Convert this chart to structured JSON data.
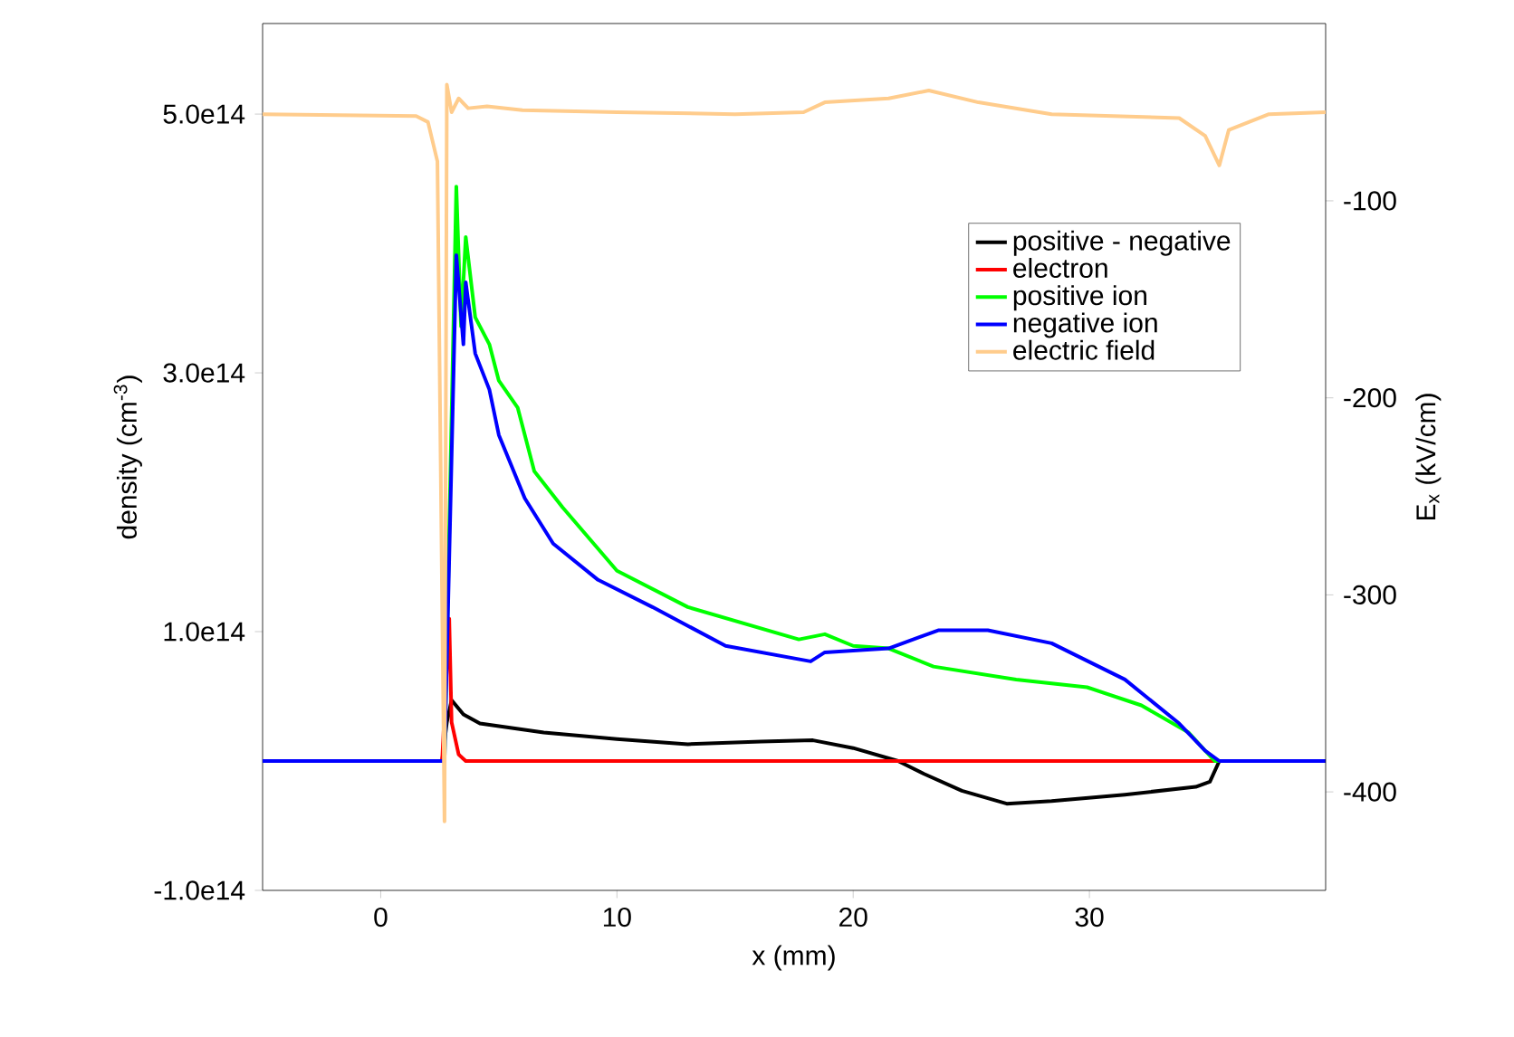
{
  "chart_data": {
    "type": "line",
    "xlabel": "x (mm)",
    "ylabel": "density (cm$^{-3}$)",
    "y2label": "E$_{x}$ (kV/cm)",
    "xlim": [
      -5,
      40
    ],
    "xticks": [
      0,
      10,
      20,
      30
    ],
    "ylim": [
      -100000000000000.0,
      570000000000000.0
    ],
    "yticks": [
      {
        "value": -100000000000000.0,
        "label": "-1.0e14"
      },
      {
        "value": 100000000000000.0,
        "label": "1.0e14"
      },
      {
        "value": 300000000000000.0,
        "label": "3.0e14"
      },
      {
        "value": 500000000000000.0,
        "label": "5.0e14"
      }
    ],
    "y2lim": [
      -450,
      -10
    ],
    "y2ticks": [
      -400,
      -300,
      -200,
      -100
    ],
    "legend": "top right",
    "grid": false,
    "marker": "none",
    "line_style": "solid",
    "series": [
      {
        "name": "positive - negative",
        "color": "#000000",
        "x": [
          -5,
          2.6,
          2.8,
          3.0,
          3.5,
          4.2,
          6.9,
          10,
          13,
          16.1,
          18.3,
          20,
          21.9,
          23,
          24.6,
          26.5,
          28.4,
          31.5,
          34.5,
          35.1,
          35.5,
          40
        ],
        "values": [
          0,
          0,
          30000000000000.0,
          47000000000000.0,
          36000000000000.0,
          29000000000000.0,
          22000000000000.0,
          17000000000000.0,
          13000000000000.0,
          15000000000000.0,
          16000000000000.0,
          10000000000000.0,
          0,
          -10000000000000.0,
          -23000000000000.0,
          -33000000000000.0,
          -31000000000000.0,
          -26000000000000.0,
          -20000000000000.0,
          -16000000000000.0,
          0,
          0
        ]
      },
      {
        "name": "electron",
        "color": "#ff0000",
        "x": [
          -5,
          2.6,
          2.9,
          3.0,
          3.3,
          3.6,
          40
        ],
        "values": [
          0,
          0,
          110000000000000.0,
          30000000000000.0,
          5000000000000.0,
          0,
          0
        ]
      },
      {
        "name": "positive ion",
        "color": "#00ff00",
        "x": [
          -5,
          2.7,
          3.2,
          3.4,
          3.6,
          4.0,
          4.6,
          5.0,
          5.8,
          6.5,
          7.7,
          10,
          13,
          17.7,
          18.8,
          20,
          21.5,
          23.4,
          26.9,
          29.9,
          32.2,
          34.2,
          35.3,
          40
        ],
        "values": [
          0,
          0,
          444000000000000.0,
          336000000000000.0,
          405000000000000.0,
          343000000000000.0,
          322000000000000.0,
          294000000000000.0,
          273000000000000.0,
          224000000000000.0,
          196000000000000.0,
          147000000000000.0,
          119000000000000.0,
          94000000000000.0,
          98000000000000.0,
          89000000000000.0,
          87000000000000.0,
          73000000000000.0,
          63000000000000.0,
          57000000000000.0,
          43000000000000.0,
          22000000000000.0,
          0,
          0
        ]
      },
      {
        "name": "negative ion",
        "color": "#0000ff",
        "x": [
          -5,
          2.7,
          3.2,
          3.5,
          3.6,
          4.0,
          4.6,
          5.0,
          6.1,
          7.3,
          9.2,
          11.5,
          14.6,
          18.2,
          18.8,
          21.5,
          23.6,
          25.7,
          28.4,
          31.5,
          33.8,
          34.9,
          35.5,
          40
        ],
        "values": [
          0,
          0,
          391000000000000.0,
          322000000000000.0,
          370000000000000.0,
          315000000000000.0,
          287000000000000.0,
          252000000000000.0,
          203000000000000.0,
          168000000000000.0,
          140000000000000.0,
          119000000000000.0,
          89000000000000.0,
          77000000000000.0,
          84000000000000.0,
          87000000000000.0,
          101000000000000.0,
          101000000000000.0,
          91000000000000.0,
          63000000000000.0,
          29000000000000.0,
          8000000000000.0,
          0,
          0
        ]
      },
      {
        "name": "electric field",
        "color": "#ffcc8c",
        "axis": "y2",
        "x": [
          -5,
          1.5,
          2.0,
          2.4,
          2.7,
          2.8,
          3.0,
          3.3,
          3.7,
          4.5,
          6,
          10,
          15,
          17.9,
          18.8,
          21.5,
          23.2,
          25.3,
          28.4,
          33.8,
          34.9,
          35.5,
          35.9,
          37.6,
          40
        ],
        "values": [
          -56,
          -57,
          -60,
          -80,
          -415,
          -41,
          -55,
          -48,
          -53,
          -52,
          -54,
          -55,
          -56,
          -55,
          -50,
          -48,
          -44,
          -50,
          -56,
          -58,
          -67,
          -82,
          -64,
          -56,
          -55
        ]
      }
    ]
  }
}
